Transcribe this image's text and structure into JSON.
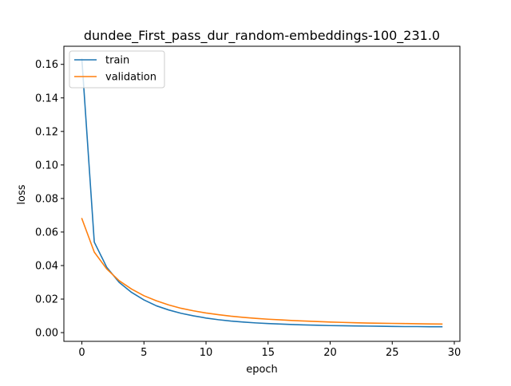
{
  "chart_data": {
    "type": "line",
    "title": "dundee_First_pass_dur_random-embeddings-100_231.0",
    "xlabel": "epoch",
    "ylabel": "loss",
    "xlim": [
      -1.45,
      30.45
    ],
    "ylim": [
      -0.0052,
      0.1708
    ],
    "xticks": [
      0,
      5,
      10,
      15,
      20,
      25,
      30
    ],
    "yticks": [
      0.0,
      0.02,
      0.04,
      0.06,
      0.08,
      0.1,
      0.12,
      0.14,
      0.16
    ],
    "xtick_labels": [
      "0",
      "5",
      "10",
      "15",
      "20",
      "25",
      "30"
    ],
    "ytick_labels": [
      "0.00",
      "0.02",
      "0.04",
      "0.06",
      "0.08",
      "0.10",
      "0.12",
      "0.14",
      "0.16"
    ],
    "grid": false,
    "legend_position": "top-left",
    "x": [
      0,
      1,
      2,
      3,
      4,
      5,
      6,
      7,
      8,
      9,
      10,
      11,
      12,
      13,
      14,
      15,
      16,
      17,
      18,
      19,
      20,
      21,
      22,
      23,
      24,
      25,
      26,
      27,
      28,
      29
    ],
    "series": [
      {
        "name": "train",
        "color": "#1f77b4",
        "values": [
          0.163,
          0.054,
          0.039,
          0.03,
          0.024,
          0.0195,
          0.016,
          0.0135,
          0.0115,
          0.01,
          0.0087,
          0.0077,
          0.0069,
          0.0063,
          0.0058,
          0.0054,
          0.0051,
          0.0048,
          0.0046,
          0.0044,
          0.0042,
          0.0041,
          0.004,
          0.0039,
          0.0038,
          0.0037,
          0.0036,
          0.0036,
          0.0035,
          0.0035
        ]
      },
      {
        "name": "validation",
        "color": "#ff7f0e",
        "values": [
          0.068,
          0.048,
          0.038,
          0.031,
          0.026,
          0.022,
          0.019,
          0.0165,
          0.0145,
          0.013,
          0.0117,
          0.0107,
          0.0098,
          0.0091,
          0.0085,
          0.008,
          0.0076,
          0.0072,
          0.0069,
          0.0066,
          0.0063,
          0.0061,
          0.0059,
          0.0057,
          0.0056,
          0.0055,
          0.0054,
          0.0053,
          0.0052,
          0.0051
        ]
      }
    ]
  }
}
